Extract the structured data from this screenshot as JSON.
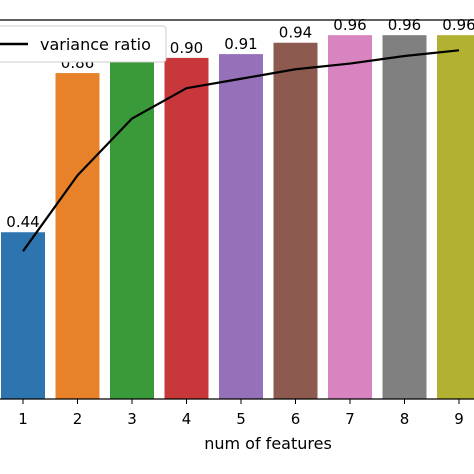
{
  "chart_data": {
    "type": "bar",
    "categories": [
      "1",
      "2",
      "3",
      "4",
      "5",
      "6",
      "7",
      "8",
      "9"
    ],
    "values": [
      0.44,
      0.86,
      0.9,
      0.9,
      0.91,
      0.94,
      0.96,
      0.96,
      0.96
    ],
    "value_labels": [
      "0.44",
      "0.86",
      "0.90",
      "0.90",
      "0.91",
      "0.94",
      "0.96",
      "0.96",
      "0.96"
    ],
    "bar_colors": [
      "#2e75b0",
      "#e8822a",
      "#3a9a3a",
      "#c8383a",
      "#9471b8",
      "#8c5a4f",
      "#d784c0",
      "#808080",
      "#b3b132"
    ],
    "line_series": {
      "name": "variance ratio",
      "values": [
        0.39,
        0.59,
        0.74,
        0.82,
        0.845,
        0.87,
        0.885,
        0.905,
        0.92
      ],
      "color": "#000000"
    },
    "xlabel": "num of features",
    "ylabel": "",
    "ylim": [
      0,
      1.0
    ],
    "legend_position": "top-left",
    "grid": false
  }
}
